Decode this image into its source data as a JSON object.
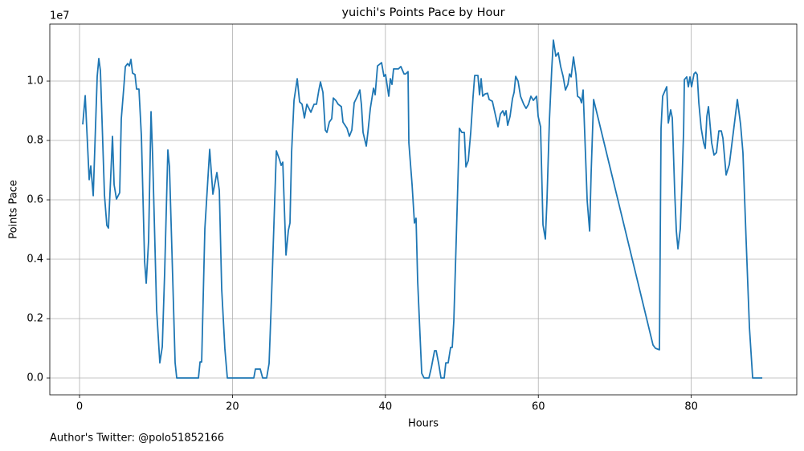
{
  "chart_data": {
    "type": "line",
    "title": "yuichi's Points Pace by Hour",
    "xlabel": "Hours",
    "ylabel": "Points Pace",
    "y_offset_label": "1e7",
    "footnote": "Author's Twitter: @polo51852166",
    "color": "#1f77b4",
    "grid": true,
    "xlim": [
      -3.89,
      93.8
    ],
    "ylim": [
      -567000,
      11920000
    ],
    "xticks": [
      0,
      20,
      40,
      60,
      80
    ],
    "yticks": [
      {
        "value": 0,
        "label": "0.0"
      },
      {
        "value": 2000000,
        "label": "0.2"
      },
      {
        "value": 4000000,
        "label": "0.4"
      },
      {
        "value": 6000000,
        "label": "0.6"
      },
      {
        "value": 8000000,
        "label": "0.8"
      },
      {
        "value": 10000000,
        "label": "1.0"
      }
    ],
    "x": [
      0.42,
      0.74,
      1.26,
      1.47,
      1.79,
      2.31,
      2.52,
      2.73,
      3.26,
      3.57,
      3.78,
      4.31,
      4.52,
      4.83,
      5.25,
      5.46,
      5.78,
      5.99,
      6.3,
      6.51,
      6.72,
      6.93,
      7.25,
      7.46,
      7.77,
      8.09,
      8.51,
      8.72,
      9.03,
      9.35,
      9.56,
      10.08,
      10.5,
      10.82,
      11.13,
      11.55,
      11.76,
      12.18,
      12.5,
      12.71,
      15.55,
      15.76,
      15.97,
      16.39,
      17.02,
      17.44,
      17.96,
      18.28,
      18.59,
      19.01,
      19.33,
      22.79,
      23.0,
      23.63,
      23.95,
      24.47,
      24.79,
      25.1,
      25.74,
      26.16,
      26.37,
      26.58,
      27.0,
      27.31,
      27.52,
      27.73,
      28.05,
      28.47,
      28.78,
      29.1,
      29.41,
      29.73,
      30.25,
      30.67,
      30.99,
      31.3,
      31.51,
      31.83,
      32.14,
      32.35,
      32.67,
      32.98,
      33.19,
      33.51,
      33.82,
      34.24,
      34.45,
      34.98,
      35.29,
      35.61,
      35.92,
      36.34,
      36.66,
      36.87,
      37.08,
      37.5,
      37.71,
      38.03,
      38.45,
      38.66,
      38.97,
      39.5,
      39.81,
      40.02,
      40.44,
      40.65,
      40.86,
      41.07,
      41.7,
      42.02,
      42.44,
      42.65,
      42.96,
      43.07,
      43.49,
      43.8,
      44.01,
      44.22,
      44.54,
      44.75,
      45.06,
      45.69,
      46.01,
      46.43,
      46.64,
      46.95,
      47.27,
      47.69,
      47.9,
      48.21,
      48.53,
      48.74,
      48.95,
      49.26,
      49.68,
      50.0,
      50.32,
      50.53,
      50.84,
      51.16,
      51.47,
      51.68,
      52.1,
      52.31,
      52.52,
      52.73,
      53.05,
      53.36,
      53.57,
      53.99,
      54.31,
      54.73,
      55.04,
      55.36,
      55.57,
      55.78,
      55.99,
      56.3,
      56.62,
      56.83,
      57.04,
      57.35,
      57.67,
      58.09,
      58.4,
      58.72,
      59.03,
      59.35,
      59.77,
      59.98,
      60.29,
      60.61,
      60.92,
      61.13,
      61.45,
      61.76,
      61.97,
      62.29,
      62.61,
      62.92,
      63.24,
      63.55,
      63.87,
      64.08,
      64.29,
      64.6,
      64.92,
      65.13,
      65.44,
      65.65,
      65.86,
      66.18,
      66.39,
      66.71,
      66.91,
      67.23,
      75.0,
      75.32,
      75.84,
      76.05,
      76.26,
      76.79,
      77.0,
      77.31,
      77.52,
      77.84,
      78.05,
      78.26,
      78.57,
      78.78,
      79.0,
      79.1,
      79.41,
      79.62,
      79.83,
      80.04,
      80.36,
      80.57,
      80.78,
      80.99,
      81.3,
      81.62,
      81.83,
      82.04,
      82.25,
      82.67,
      82.98,
      83.3,
      83.61,
      83.93,
      84.14,
      84.56,
      84.98,
      85.5,
      86.03,
      86.45,
      86.76,
      87.18,
      87.61,
      88.03,
      89.29
    ],
    "values": [
      8540000,
      9510000,
      6680000,
      7140000,
      6140000,
      10160000,
      10760000,
      10350000,
      6160000,
      5140000,
      5050000,
      8140000,
      6510000,
      6030000,
      6240000,
      8730000,
      9760000,
      10490000,
      10590000,
      10510000,
      10730000,
      10270000,
      10220000,
      9730000,
      9730000,
      8140000,
      3920000,
      3190000,
      4620000,
      8970000,
      7460000,
      2300000,
      510000,
      1050000,
      3540000,
      7680000,
      7110000,
      3410000,
      510000,
      0,
      0,
      540000,
      540000,
      5030000,
      7700000,
      6190000,
      6920000,
      6320000,
      3000000,
      970000,
      0,
      0,
      300000,
      300000,
      0,
      0,
      490000,
      2680000,
      7650000,
      7350000,
      7160000,
      7270000,
      4140000,
      4970000,
      5220000,
      7590000,
      9350000,
      10080000,
      9300000,
      9220000,
      8760000,
      9220000,
      8950000,
      9220000,
      9220000,
      9700000,
      9970000,
      9620000,
      8350000,
      8270000,
      8620000,
      8730000,
      9430000,
      9350000,
      9220000,
      9140000,
      8620000,
      8410000,
      8140000,
      8350000,
      9270000,
      9490000,
      9700000,
      9190000,
      8270000,
      7810000,
      8270000,
      9080000,
      9760000,
      9540000,
      10510000,
      10620000,
      10160000,
      10220000,
      9490000,
      10080000,
      9890000,
      10410000,
      10410000,
      10490000,
      10240000,
      10240000,
      10320000,
      7920000,
      6510000,
      5220000,
      5380000,
      3270000,
      1380000,
      160000,
      0,
      0,
      350000,
      920000,
      920000,
      510000,
      0,
      0,
      510000,
      510000,
      1030000,
      1030000,
      1920000,
      4620000,
      8410000,
      8270000,
      8270000,
      7110000,
      7320000,
      8270000,
      9490000,
      10190000,
      10190000,
      9540000,
      10080000,
      9490000,
      9570000,
      9590000,
      9380000,
      9320000,
      8950000,
      8460000,
      8890000,
      9000000,
      8840000,
      9000000,
      8510000,
      8810000,
      9410000,
      9620000,
      10160000,
      10000000,
      9490000,
      9220000,
      9080000,
      9220000,
      9490000,
      9350000,
      9490000,
      8810000,
      8460000,
      5160000,
      4680000,
      5970000,
      8680000,
      10430000,
      11380000,
      10840000,
      10950000,
      10490000,
      10160000,
      9700000,
      9890000,
      10240000,
      10140000,
      10810000,
      10220000,
      9490000,
      9430000,
      9270000,
      9700000,
      7460000,
      5970000,
      4950000,
      6920000,
      9380000,
      1110000,
      1000000,
      950000,
      8410000,
      9490000,
      9810000,
      8590000,
      9030000,
      8760000,
      6240000,
      4950000,
      4350000,
      5030000,
      6510000,
      8320000,
      10050000,
      10140000,
      9810000,
      10140000,
      9810000,
      10240000,
      10300000,
      10220000,
      9270000,
      8410000,
      7920000,
      7730000,
      8810000,
      9140000,
      7920000,
      7510000,
      7590000,
      8320000,
      8320000,
      8080000,
      6840000,
      7190000,
      8270000,
      9380000,
      8540000,
      7590000,
      4620000,
      1700000,
      0,
      0
    ]
  }
}
